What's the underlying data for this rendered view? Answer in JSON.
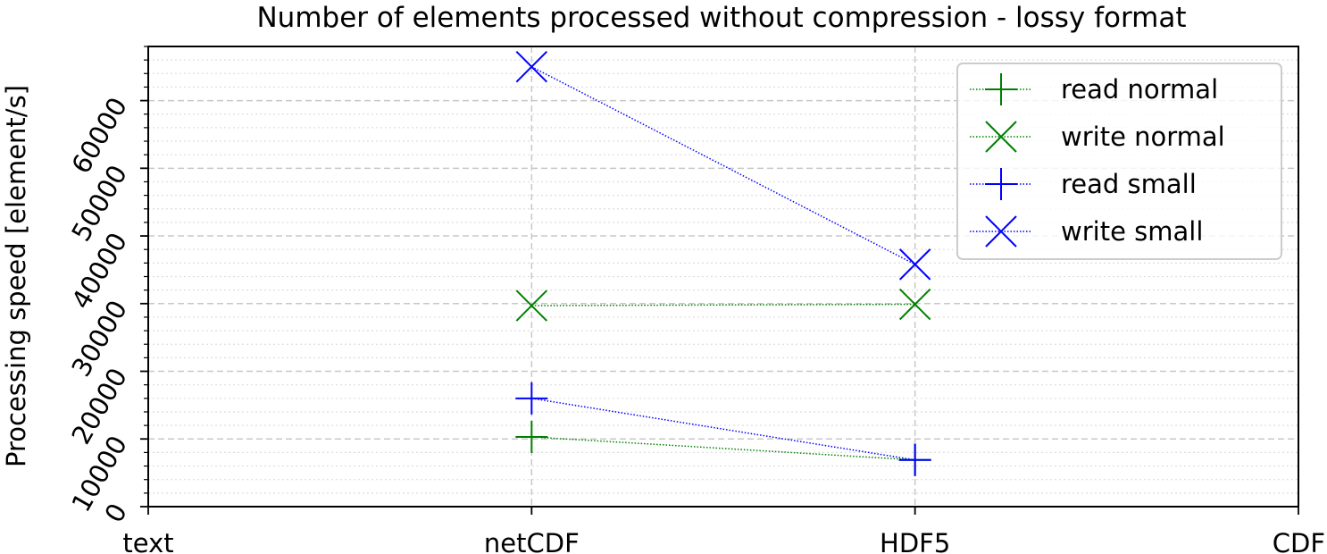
{
  "chart_data": {
    "type": "line",
    "title": "Number of elements processed without compression - lossy format",
    "xlabel": "",
    "ylabel": "Processing speed [element/s]",
    "categories": [
      "text",
      "netCDF",
      "HDF5",
      "CDF"
    ],
    "ylim": [
      0,
      68000
    ],
    "yticks": [
      0,
      10000,
      20000,
      30000,
      40000,
      50000,
      60000
    ],
    "y_minor_step": 2000,
    "grid": {
      "major": "dashed",
      "minor": "dotted"
    },
    "legend_position": "top-right",
    "series": [
      {
        "name": "read normal",
        "color": "#008000",
        "marker": "plus",
        "points": [
          {
            "x": "netCDF",
            "y": 10300
          },
          {
            "x": "HDF5",
            "y": 6900
          }
        ]
      },
      {
        "name": "write normal",
        "color": "#008000",
        "marker": "x",
        "points": [
          {
            "x": "netCDF",
            "y": 29700
          },
          {
            "x": "HDF5",
            "y": 29900
          }
        ]
      },
      {
        "name": "read small",
        "color": "#0000ff",
        "marker": "plus",
        "points": [
          {
            "x": "netCDF",
            "y": 16000
          },
          {
            "x": "HDF5",
            "y": 6900
          }
        ]
      },
      {
        "name": "write small",
        "color": "#0000ff",
        "marker": "x",
        "points": [
          {
            "x": "netCDF",
            "y": 65000
          },
          {
            "x": "HDF5",
            "y": 35800
          }
        ]
      }
    ]
  }
}
